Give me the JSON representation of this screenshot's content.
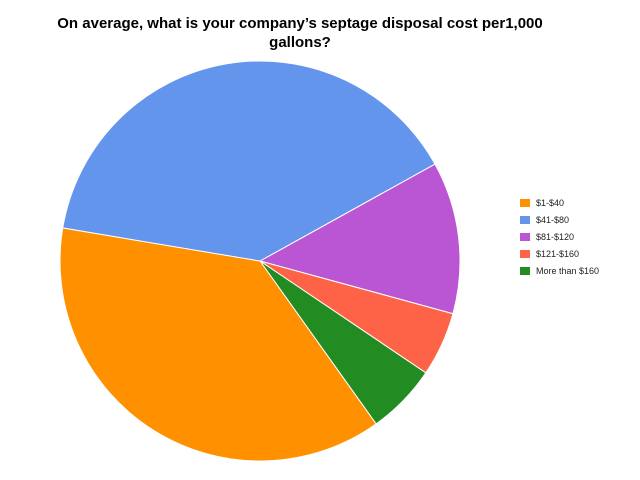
{
  "chart_data": {
    "type": "pie",
    "title": "On average, what is your company’s septage disposal cost per1,000 gallons?",
    "categories": [
      "$1-$40",
      "$41-$80",
      "$81-$120",
      "$121-$160",
      "More than $160"
    ],
    "values": [
      37.5,
      39.3,
      12.3,
      5.2,
      5.7
    ],
    "colors": [
      "#ff9000",
      "#6495ed",
      "#ba55d3",
      "#ff6347",
      "#228b22"
    ],
    "legend_position": "right",
    "legend_order": [
      0,
      1,
      2,
      3,
      4
    ],
    "drawing_order": [
      2,
      3,
      4,
      0,
      1
    ]
  }
}
